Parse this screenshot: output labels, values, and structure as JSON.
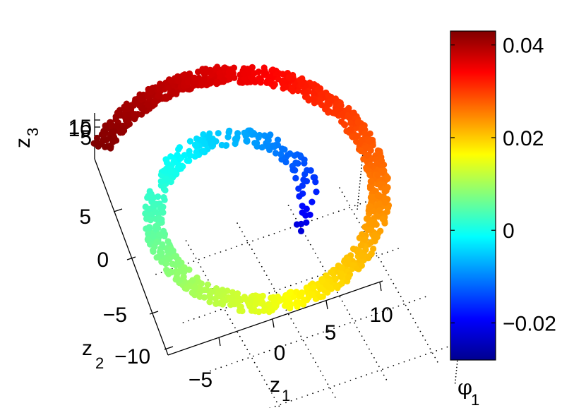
{
  "chart_data": {
    "type": "scatter",
    "subtype": "3d-swiss-roll",
    "title": "",
    "axes": {
      "z1": {
        "label": "z",
        "subscript": "1",
        "ticks": [
          -5,
          0,
          5,
          10
        ],
        "tick_labels": [
          "−5",
          "0",
          "5",
          "10"
        ]
      },
      "z2": {
        "label": "z",
        "subscript": "2",
        "ticks": [
          -10,
          -5,
          0,
          5
        ],
        "tick_labels": [
          "−10",
          "−5",
          "0",
          "5"
        ]
      },
      "z3": {
        "label": "z",
        "subscript": "3",
        "ticks": [
          5,
          10,
          15
        ],
        "tick_labels": [
          "5",
          "10",
          "15"
        ]
      }
    },
    "grid": true,
    "colorbar": {
      "label": "φ",
      "subscript": "1",
      "range": [
        -0.028,
        0.043
      ],
      "ticks": [
        -0.02,
        0,
        0.02,
        0.04
      ],
      "tick_labels": [
        "−0.02",
        "0",
        "0.02",
        "0.04"
      ],
      "colormap": "jet"
    },
    "series": [
      {
        "description_of_points": "swiss roll spiral in (z1, z2) plane; color = phi_1 value",
        "spiral_param_t_range": [
          4.5,
          14.1
        ],
        "phi1_at_t_start": -0.028,
        "phi1_at_t_end": 0.043,
        "points_count": 1400
      }
    ]
  },
  "colors": {
    "marker_default": "#0000ff",
    "grid": "#000000",
    "axis": "#000000"
  }
}
